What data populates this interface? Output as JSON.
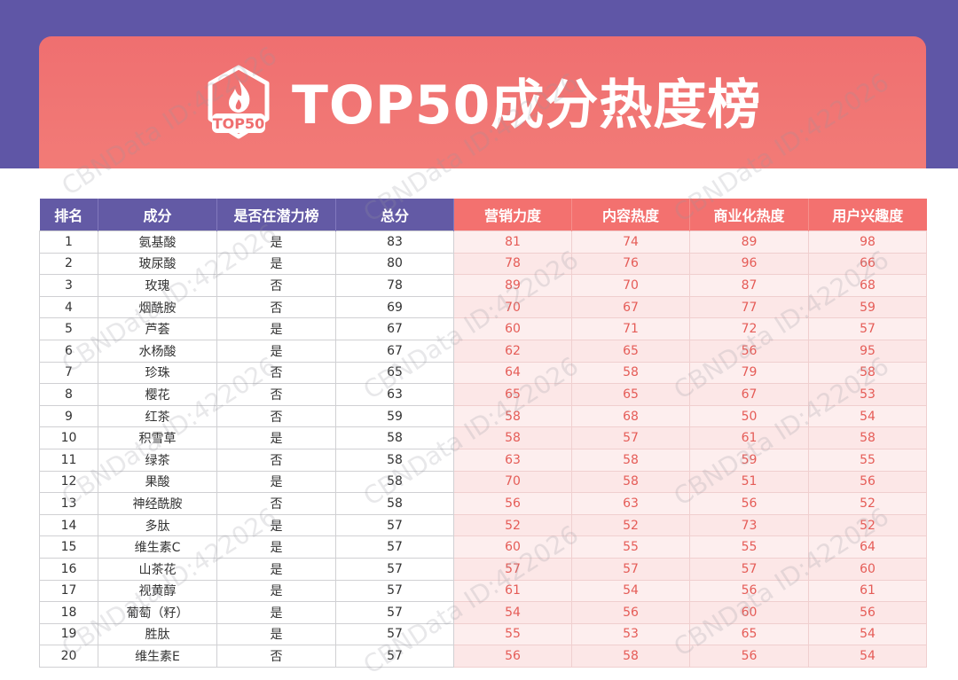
{
  "header": {
    "badge_text": "TOP50",
    "title": "TOP50成分热度榜"
  },
  "table": {
    "columns": [
      "排名",
      "成分",
      "是否在潜力榜",
      "总分",
      "营销力度",
      "内容热度",
      "商业化热度",
      "用户兴趣度"
    ],
    "rows": [
      [
        "1",
        "氨基酸",
        "是",
        "83",
        "81",
        "74",
        "89",
        "98"
      ],
      [
        "2",
        "玻尿酸",
        "是",
        "80",
        "78",
        "76",
        "96",
        "66"
      ],
      [
        "3",
        "玫瑰",
        "否",
        "78",
        "89",
        "70",
        "87",
        "68"
      ],
      [
        "4",
        "烟酰胺",
        "否",
        "69",
        "70",
        "67",
        "77",
        "59"
      ],
      [
        "5",
        "芦荟",
        "是",
        "67",
        "60",
        "71",
        "72",
        "57"
      ],
      [
        "6",
        "水杨酸",
        "是",
        "67",
        "62",
        "65",
        "56",
        "95"
      ],
      [
        "7",
        "珍珠",
        "否",
        "65",
        "64",
        "58",
        "79",
        "58"
      ],
      [
        "8",
        "樱花",
        "否",
        "63",
        "65",
        "65",
        "67",
        "53"
      ],
      [
        "9",
        "红茶",
        "否",
        "59",
        "58",
        "68",
        "50",
        "54"
      ],
      [
        "10",
        "积雪草",
        "是",
        "58",
        "58",
        "57",
        "61",
        "58"
      ],
      [
        "11",
        "绿茶",
        "否",
        "58",
        "63",
        "58",
        "59",
        "55"
      ],
      [
        "12",
        "果酸",
        "是",
        "58",
        "70",
        "58",
        "51",
        "56"
      ],
      [
        "13",
        "神经酰胺",
        "否",
        "58",
        "56",
        "63",
        "56",
        "52"
      ],
      [
        "14",
        "多肽",
        "是",
        "57",
        "52",
        "52",
        "73",
        "52"
      ],
      [
        "15",
        "维生素C",
        "是",
        "57",
        "60",
        "55",
        "55",
        "64"
      ],
      [
        "16",
        "山茶花",
        "是",
        "57",
        "57",
        "57",
        "57",
        "60"
      ],
      [
        "17",
        "视黄醇",
        "是",
        "57",
        "61",
        "54",
        "56",
        "61"
      ],
      [
        "18",
        "葡萄（籽）",
        "是",
        "57",
        "54",
        "56",
        "60",
        "56"
      ],
      [
        "19",
        "胜肽",
        "是",
        "57",
        "55",
        "53",
        "65",
        "54"
      ],
      [
        "20",
        "维生素E",
        "否",
        "57",
        "56",
        "58",
        "56",
        "54"
      ]
    ]
  },
  "watermark": "CBNData ID:422026",
  "colors": {
    "purple": "#5f56a6",
    "coral": "#f3716f",
    "score_text": "#e55c57"
  }
}
